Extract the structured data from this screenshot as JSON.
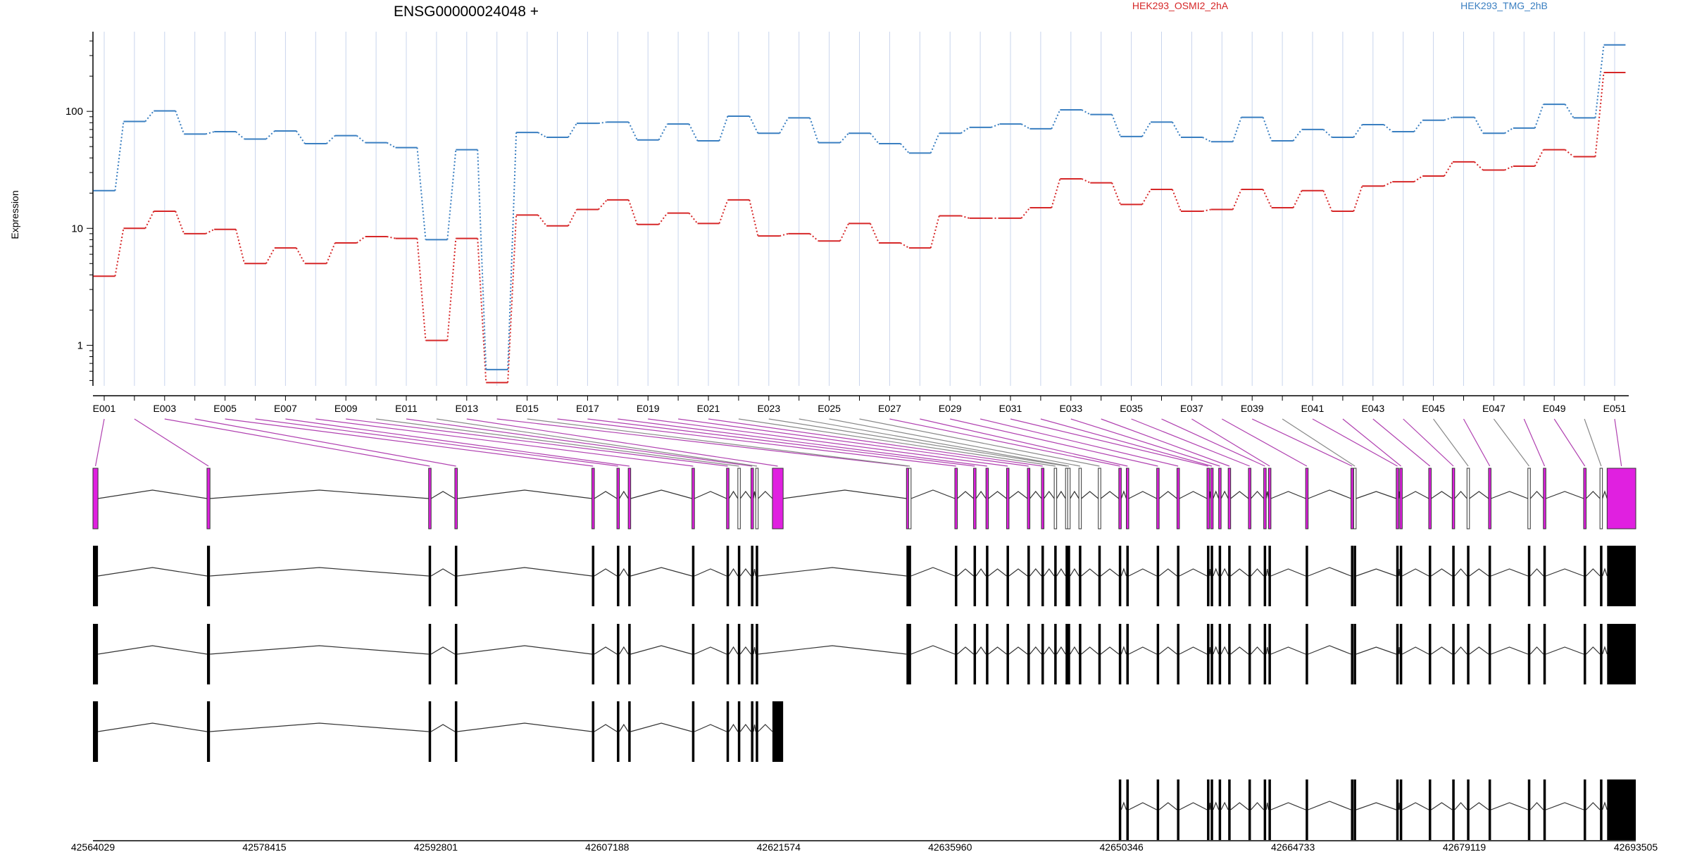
{
  "chart_data": {
    "type": "line",
    "title": "ENSG00000024048 +",
    "ylabel": "Expression",
    "yscale": "log",
    "ylim": [
      0.45,
      480
    ],
    "yticks": [
      1,
      10,
      100
    ],
    "grid": true,
    "exon_tick_labels": [
      "E001",
      "E003",
      "E005",
      "E007",
      "E009",
      "E011",
      "E013",
      "E015",
      "E017",
      "E019",
      "E021",
      "E023",
      "E025",
      "E027",
      "E029",
      "E031",
      "E033",
      "E035",
      "E037",
      "E039",
      "E041",
      "E043",
      "E045",
      "E047",
      "E049",
      "E051"
    ],
    "genome_tick_labels": [
      "42564029",
      "42578415",
      "42592801",
      "42607188",
      "42621574",
      "42635960",
      "42650346",
      "42664733",
      "42679119",
      "42693505"
    ],
    "genome_range": [
      42564029,
      42693505
    ],
    "series": [
      {
        "name": "HEK293_OSMI2_2hA",
        "color": "#d62728",
        "values": [
          3.9,
          10,
          14,
          9,
          9.8,
          5,
          6.8,
          5,
          7.5,
          8.5,
          8.2,
          1.1,
          8.2,
          0.48,
          13,
          10.5,
          14.5,
          17.5,
          10.8,
          13.5,
          11,
          17.5,
          8.6,
          9,
          7.8,
          11,
          7.5,
          6.8,
          12.8,
          12.2,
          12.2,
          15,
          26.5,
          24.5,
          16,
          21.5,
          14,
          14.5,
          21.5,
          15,
          21,
          14,
          23,
          25,
          28,
          37,
          31.5,
          34,
          47,
          41,
          215
        ]
      },
      {
        "name": "HEK293_TMG_2hB",
        "color": "#3a7fc1",
        "values": [
          21,
          82,
          101,
          64,
          67,
          58,
          68,
          53,
          62,
          54,
          49,
          8,
          47,
          0.62,
          66,
          60,
          79,
          81,
          57,
          78,
          56,
          91,
          65,
          88,
          54,
          65,
          53,
          44,
          65,
          73,
          78,
          71,
          103,
          94,
          61,
          81,
          60,
          55,
          89,
          56,
          70,
          60,
          77,
          67,
          84,
          89,
          65,
          72,
          115,
          88,
          370
        ]
      }
    ]
  },
  "transcripts": {
    "exon_highlight_color": "#e020e0",
    "exon_line_purple": "#b040b0",
    "exon_line_gray": "#888888",
    "highlighted_exons": [
      1,
      2,
      3,
      4,
      5,
      6,
      7,
      8,
      9,
      11,
      13,
      14,
      16,
      17,
      18,
      19,
      20,
      21,
      27,
      28,
      29,
      30,
      31,
      32,
      33,
      34,
      35,
      36,
      37,
      38,
      39,
      41,
      42,
      43,
      44,
      46,
      48,
      49,
      51
    ],
    "exons_bp": [
      [
        42564029,
        42564450
      ],
      [
        42573600,
        42573850
      ],
      [
        42592200,
        42592320
      ],
      [
        42594400,
        42594520
      ],
      [
        42605900,
        42606020
      ],
      [
        42608000,
        42608120
      ],
      [
        42608950,
        42609060
      ],
      [
        42614300,
        42614420
      ],
      [
        42617200,
        42617300
      ],
      [
        42618150,
        42618250
      ],
      [
        42619250,
        42619350
      ],
      [
        42619650,
        42619750
      ],
      [
        42621050,
        42621950
      ],
      [
        42632300,
        42632400
      ],
      [
        42632480,
        42632600
      ],
      [
        42636360,
        42636500
      ],
      [
        42637930,
        42638040
      ],
      [
        42638970,
        42639080
      ],
      [
        42640700,
        42640820
      ],
      [
        42642450,
        42642560
      ],
      [
        42643630,
        42643740
      ],
      [
        42644700,
        42644810
      ],
      [
        42645650,
        42645760
      ],
      [
        42645830,
        42645940
      ],
      [
        42646770,
        42646880
      ],
      [
        42648400,
        42648510
      ],
      [
        42650120,
        42650230
      ],
      [
        42650750,
        42650860
      ],
      [
        42653300,
        42653420
      ],
      [
        42655000,
        42655110
      ],
      [
        42657520,
        42657630
      ],
      [
        42657830,
        42657940
      ],
      [
        42658500,
        42658600
      ],
      [
        42659300,
        42659400
      ],
      [
        42661000,
        42661110
      ],
      [
        42662280,
        42662390
      ],
      [
        42662680,
        42662790
      ],
      [
        42665800,
        42665910
      ],
      [
        42669600,
        42669710
      ],
      [
        42669830,
        42669940
      ],
      [
        42673400,
        42673510
      ],
      [
        42673700,
        42673810
      ],
      [
        42676130,
        42676240
      ],
      [
        42678100,
        42678210
      ],
      [
        42679340,
        42679450
      ],
      [
        42681150,
        42681260
      ],
      [
        42684450,
        42684560
      ],
      [
        42685750,
        42685860
      ],
      [
        42689130,
        42689240
      ],
      [
        42690500,
        42690610
      ],
      [
        42691100,
        42693505
      ]
    ],
    "transcript_exons": [
      [
        1,
        2,
        3,
        4,
        5,
        6,
        7,
        8,
        9,
        10,
        11,
        12,
        14,
        15,
        16,
        17,
        18,
        19,
        20,
        21,
        22,
        23,
        24,
        25,
        26,
        27,
        28,
        29,
        30,
        31,
        32,
        33,
        34,
        35,
        36,
        37,
        38,
        39,
        40,
        41,
        42,
        43,
        44,
        45,
        46,
        47,
        48,
        49,
        50,
        51
      ],
      [
        1,
        2,
        3,
        4,
        5,
        6,
        7,
        8,
        9,
        10,
        11,
        12,
        14,
        15,
        16,
        17,
        18,
        19,
        20,
        21,
        22,
        23,
        24,
        25,
        26,
        27,
        28,
        29,
        30,
        31,
        32,
        33,
        34,
        35,
        36,
        37,
        38,
        39,
        40,
        41,
        42,
        43,
        44,
        45,
        46,
        47,
        48,
        49,
        50,
        51
      ],
      [
        1,
        2,
        3,
        4,
        5,
        6,
        7,
        8,
        9,
        10,
        11,
        12,
        13
      ],
      [
        27,
        28,
        29,
        30,
        31,
        32,
        33,
        34,
        35,
        36,
        37,
        38,
        39,
        40,
        41,
        42,
        43,
        44,
        45,
        46,
        47,
        48,
        49,
        50,
        51
      ]
    ]
  }
}
